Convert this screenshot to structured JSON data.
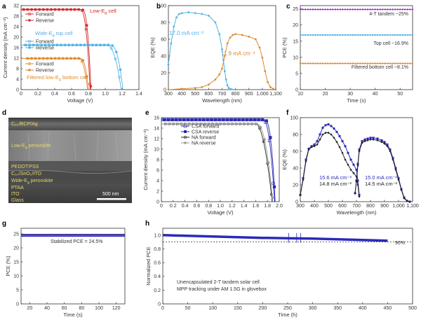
{
  "figure": {
    "colors": {
      "red": "#d62728",
      "blue": "#5aa9e6",
      "orange": "#e08a2c",
      "purple": "#9b30c8",
      "navy": "#2a2ab8",
      "black": "#222222",
      "gray": "#9a9a9a",
      "lightblue": "#4fb3e8"
    }
  },
  "chart_data": [
    {
      "id": "a",
      "type": "line",
      "panel_label": "a",
      "xlabel": "Voltage (V)",
      "ylabel": "Current density (mA cm⁻²)",
      "xlim": [
        0,
        1.4
      ],
      "ylim": [
        0,
        32
      ],
      "xticks": [
        0,
        0.2,
        0.4,
        0.6,
        0.8,
        1.0,
        1.2,
        1.4
      ],
      "xtick_labels": [
        "0",
        "0.2",
        "0.4",
        "0.6",
        "0.8",
        "1.0",
        "1.2",
        "1.4"
      ],
      "yticks": [
        0,
        4,
        8,
        12,
        16,
        20,
        24,
        28,
        32
      ],
      "legend_forward": "Forward",
      "legend_reverse": "Reverse",
      "annotations": {
        "low": "Low-E",
        "low_sub": "g",
        "low_tail": " cell",
        "wide": "Wide-E",
        "wide_sub": "g",
        "wide_tail": " top cell",
        "filtered": "Filtered low-E",
        "filtered_sub": "g",
        "filtered_tail": " bottom cell"
      },
      "series": [
        {
          "name": "Low-Eg cell forward",
          "color_key": "red",
          "jsc": 30.5,
          "voc": 0.82,
          "vk": 0.7,
          "n": 2.6
        },
        {
          "name": "Low-Eg cell reverse",
          "color_key": "red",
          "jsc": 30.5,
          "voc": 0.83,
          "vk": 0.72,
          "n": 2.8
        },
        {
          "name": "Wide-Eg top cell forward",
          "color_key": "lightblue",
          "jsc": 17.0,
          "voc": 1.19,
          "vk": 1.02,
          "n": 2.2
        },
        {
          "name": "Wide-Eg top cell reverse",
          "color_key": "lightblue",
          "jsc": 17.0,
          "voc": 1.21,
          "vk": 1.06,
          "n": 2.5
        },
        {
          "name": "Filtered bottom cell forward",
          "color_key": "orange",
          "jsc": 11.9,
          "voc": 0.79,
          "vk": 0.68,
          "n": 2.5
        },
        {
          "name": "Filtered bottom cell reverse",
          "color_key": "orange",
          "jsc": 11.9,
          "voc": 0.8,
          "vk": 0.7,
          "n": 2.7
        }
      ]
    },
    {
      "id": "b",
      "type": "line",
      "panel_label": "b",
      "xlabel": "Wavelength (nm)",
      "ylabel": "EQE (%)",
      "xlim": [
        300,
        1100
      ],
      "ylim": [
        0,
        100
      ],
      "xticks": [
        300,
        400,
        500,
        600,
        700,
        800,
        900,
        1000,
        1100
      ],
      "xtick_labels": [
        "300",
        "400",
        "500",
        "600",
        "700",
        "800",
        "900",
        "1,000",
        "1,100"
      ],
      "yticks": [
        0,
        20,
        40,
        60,
        80,
        100
      ],
      "labels": {
        "top": "17.0 mA cm⁻²",
        "bottom": "11.9 mA cm⁻²"
      },
      "series": [
        {
          "name": "Wide-Eg top cell",
          "color_key": "lightblue",
          "x": [
            300,
            320,
            340,
            360,
            380,
            400,
            450,
            500,
            550,
            600,
            650,
            680,
            700,
            710,
            720,
            730,
            740,
            750,
            770,
            800
          ],
          "y": [
            30,
            55,
            75,
            86,
            90,
            91,
            92,
            91,
            90,
            88,
            80,
            66,
            48,
            35,
            22,
            12,
            5,
            2,
            0.5,
            0
          ]
        },
        {
          "name": "Filtered low-Eg bottom cell",
          "color_key": "orange",
          "x": [
            300,
            400,
            500,
            550,
            600,
            650,
            680,
            700,
            720,
            740,
            760,
            780,
            800,
            850,
            900,
            950,
            980,
            1000,
            1020,
            1040,
            1060,
            1080,
            1100
          ],
          "y": [
            0,
            1,
            2,
            3,
            6,
            12,
            18,
            25,
            40,
            55,
            62,
            65,
            66,
            65,
            63,
            60,
            50,
            38,
            22,
            9,
            3,
            1,
            0
          ]
        }
      ]
    },
    {
      "id": "c",
      "type": "scatter",
      "panel_label": "c",
      "xlabel": "Time (s)",
      "ylabel": "PCE (%)",
      "xlim": [
        10,
        55
      ],
      "ylim": [
        0,
        26
      ],
      "xticks": [
        10,
        20,
        30,
        40,
        50
      ],
      "yticks": [
        0,
        5,
        10,
        15,
        20,
        25
      ],
      "series": [
        {
          "name": "4-T tandem",
          "label": "4-T tandem ~25%",
          "color_key": "purple",
          "value": 24.8
        },
        {
          "name": "Top cell",
          "label": "Top cell ~16.9%",
          "color_key": "lightblue",
          "value": 16.9
        },
        {
          "name": "Filtered bottom cell",
          "label": "Filtered bottom cell ~8.1%",
          "color_key": "orange",
          "value": 8.1
        }
      ]
    },
    {
      "id": "d",
      "type": "image",
      "panel_label": "d",
      "layers": {
        "top": "C₆₀/BCP/Ag",
        "low_pre": "Low-E",
        "low_sub": "g",
        "low_tail": " perovskite",
        "pedot": "PEDOT:PSS",
        "recomb": "C₆₀/SnO₂/ITO",
        "wide_pre": "Wide-E",
        "wide_sub": "g",
        "wide_tail": " perovskite",
        "ptaa": "PTAA",
        "ito": "ITO",
        "glass": "Glass"
      },
      "scale_bar": "500 nm"
    },
    {
      "id": "e",
      "type": "line",
      "panel_label": "e",
      "xlabel": "Voltage (V)",
      "ylabel": "Current density (mA cm⁻²)",
      "xlim": [
        0,
        2.0
      ],
      "ylim": [
        0,
        16
      ],
      "xticks": [
        0,
        0.2,
        0.4,
        0.6,
        0.8,
        1.0,
        1.2,
        1.4,
        1.6,
        1.8,
        2.0
      ],
      "xtick_labels": [
        "0",
        "0.2",
        "0.4",
        "0.6",
        "0.8",
        "1.0",
        "1.2",
        "1.4",
        "1.6",
        "1.8",
        "2.0"
      ],
      "yticks": [
        0,
        2,
        4,
        6,
        8,
        10,
        12,
        14,
        16
      ],
      "series": [
        {
          "name": "CSA forward",
          "color_key": "navy",
          "jsc": 15.6,
          "voc": 1.92,
          "vk": 1.72,
          "n": 2.4
        },
        {
          "name": "CSA reverse",
          "color_key": "navy",
          "jsc": 15.6,
          "voc": 1.93,
          "vk": 1.75,
          "n": 2.6
        },
        {
          "name": "NA forward",
          "color_key": "black",
          "jsc": 14.8,
          "voc": 1.88,
          "vk": 1.6,
          "n": 2.0
        },
        {
          "name": "NA reverse",
          "color_key": "gray",
          "jsc": 14.8,
          "voc": 1.89,
          "vk": 1.62,
          "n": 2.2
        }
      ]
    },
    {
      "id": "f",
      "type": "line",
      "panel_label": "f",
      "xlabel": "Wavelength (nm)",
      "ylabel": "EQE (%)",
      "xlim": [
        300,
        1100
      ],
      "ylim": [
        0,
        100
      ],
      "xticks": [
        300,
        400,
        500,
        600,
        700,
        800,
        900,
        1000,
        1100
      ],
      "xtick_labels": [
        "300",
        "400",
        "500",
        "600",
        "700",
        "800",
        "900",
        "1,000",
        "1,100"
      ],
      "yticks": [
        0,
        20,
        40,
        60,
        80,
        100
      ],
      "labels": {
        "csa_top": "15.6 mA cm⁻²",
        "na_top": "14.8 mA cm⁻²",
        "csa_bottom": "15.0 mA cm⁻²",
        "na_bottom": "14.5 mA cm⁻²"
      },
      "series": [
        {
          "name": "CSA top subcell",
          "color_key": "navy",
          "x": [
            300,
            320,
            340,
            360,
            380,
            400,
            420,
            440,
            460,
            480,
            500,
            520,
            540,
            560,
            580,
            600,
            620,
            640,
            660,
            680,
            700,
            710,
            720
          ],
          "y": [
            8,
            28,
            50,
            63,
            66,
            68,
            72,
            80,
            88,
            91,
            92,
            90,
            87,
            83,
            78,
            72,
            66,
            58,
            50,
            44,
            38,
            25,
            8
          ]
        },
        {
          "name": "NA top subcell",
          "color_key": "black",
          "x": [
            300,
            320,
            340,
            360,
            380,
            400,
            420,
            440,
            460,
            480,
            500,
            520,
            540,
            560,
            580,
            600,
            620,
            640,
            660,
            680,
            700,
            710,
            720
          ],
          "y": [
            8,
            26,
            48,
            62,
            65,
            66,
            68,
            74,
            80,
            82,
            82,
            80,
            76,
            71,
            65,
            58,
            50,
            44,
            38,
            34,
            30,
            20,
            6
          ]
        },
        {
          "name": "CSA bottom subcell",
          "color_key": "navy",
          "x": [
            690,
            700,
            710,
            720,
            740,
            760,
            780,
            800,
            820,
            850,
            880,
            900,
            920,
            940,
            960,
            980,
            1000,
            1020,
            1040,
            1060,
            1080
          ],
          "y": [
            10,
            25,
            45,
            62,
            72,
            74,
            75,
            76,
            76,
            75,
            73,
            71,
            68,
            62,
            52,
            40,
            28,
            15,
            5,
            1,
            0
          ]
        },
        {
          "name": "NA bottom subcell",
          "color_key": "black",
          "x": [
            690,
            700,
            710,
            720,
            740,
            760,
            780,
            800,
            820,
            850,
            880,
            900,
            920,
            940,
            960,
            980,
            1000,
            1020,
            1040,
            1060,
            1080
          ],
          "y": [
            10,
            24,
            43,
            60,
            70,
            72,
            73,
            74,
            74,
            73,
            71,
            69,
            66,
            60,
            50,
            38,
            26,
            14,
            4,
            1,
            0
          ]
        }
      ]
    },
    {
      "id": "g",
      "type": "line",
      "panel_label": "g",
      "xlabel": "Time (s)",
      "ylabel": "PCE (%)",
      "xlim": [
        10,
        130
      ],
      "ylim": [
        0,
        27
      ],
      "xticks": [
        20,
        40,
        60,
        80,
        100,
        120
      ],
      "yticks": [
        0,
        5,
        10,
        15,
        20,
        25
      ],
      "annotation": "Stabilized PCE = 24.5%",
      "series": [
        {
          "name": "Stabilized PCE",
          "color_key": "navy",
          "value": 24.5
        }
      ]
    },
    {
      "id": "h",
      "type": "line",
      "panel_label": "h",
      "xlabel": "Time (h)",
      "ylabel": "Normalized PCE",
      "xlim": [
        0,
        500
      ],
      "ylim": [
        0,
        1.1
      ],
      "xticks": [
        0,
        50,
        100,
        150,
        200,
        250,
        300,
        350,
        400,
        450,
        500
      ],
      "yticks": [
        0,
        0.2,
        0.4,
        0.6,
        0.8,
        1.0
      ],
      "ytick_labels": [
        "0",
        "0.2",
        "0.4",
        "0.6",
        "0.8",
        "1.0"
      ],
      "reference_line": 0.9,
      "reference_label": "90%",
      "annotation_line1": "Unencapsulated 2-T tandem solar cell",
      "annotation_line2": "MPP tracking under AM 1.5G in glovebox",
      "series": [
        {
          "name": "Normalized PCE",
          "color_key": "navy",
          "x": [
            0,
            50,
            100,
            150,
            200,
            250,
            300,
            350,
            400,
            450
          ],
          "y": [
            1.0,
            0.99,
            0.98,
            0.97,
            0.96,
            0.955,
            0.95,
            0.94,
            0.93,
            0.92
          ]
        }
      ]
    }
  ]
}
